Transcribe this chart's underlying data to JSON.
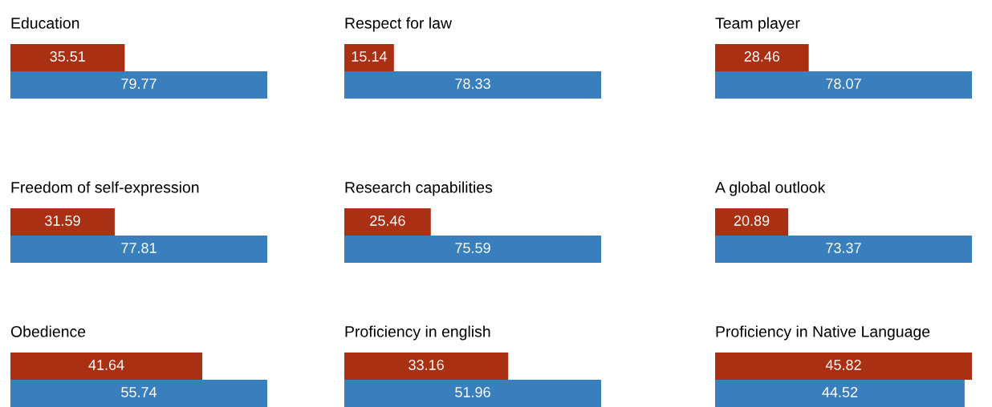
{
  "chart_data": [
    {
      "type": "bar",
      "orientation": "horizontal",
      "title": "Education",
      "categories": [
        null
      ],
      "series": [
        {
          "color": "#a93012",
          "values": [
            35.51
          ]
        },
        {
          "color": "#3a7fbd",
          "values": [
            79.77
          ]
        }
      ],
      "data_labels": true,
      "tick_labels": false
    },
    {
      "type": "bar",
      "orientation": "horizontal",
      "title": "Respect for law",
      "categories": [
        null
      ],
      "series": [
        {
          "color": "#a93012",
          "values": [
            15.14
          ]
        },
        {
          "color": "#3a7fbd",
          "values": [
            78.33
          ]
        }
      ],
      "data_labels": true,
      "tick_labels": false
    },
    {
      "type": "bar",
      "orientation": "horizontal",
      "title": "Team player",
      "categories": [
        null
      ],
      "series": [
        {
          "color": "#a93012",
          "values": [
            28.46
          ]
        },
        {
          "color": "#3a7fbd",
          "values": [
            78.07
          ]
        }
      ],
      "data_labels": true,
      "tick_labels": false
    },
    {
      "type": "bar",
      "orientation": "horizontal",
      "title": "Freedom of self-expression",
      "categories": [
        null
      ],
      "series": [
        {
          "color": "#a93012",
          "values": [
            31.59
          ]
        },
        {
          "color": "#3a7fbd",
          "values": [
            77.81
          ]
        }
      ],
      "data_labels": true,
      "tick_labels": false
    },
    {
      "type": "bar",
      "orientation": "horizontal",
      "title": "Research capabilities",
      "categories": [
        null
      ],
      "series": [
        {
          "color": "#a93012",
          "values": [
            25.46
          ]
        },
        {
          "color": "#3a7fbd",
          "values": [
            75.59
          ]
        }
      ],
      "data_labels": true,
      "tick_labels": false
    },
    {
      "type": "bar",
      "orientation": "horizontal",
      "title": "A global outlook",
      "categories": [
        null
      ],
      "series": [
        {
          "color": "#a93012",
          "values": [
            20.89
          ]
        },
        {
          "color": "#3a7fbd",
          "values": [
            73.37
          ]
        }
      ],
      "data_labels": true,
      "tick_labels": false
    },
    {
      "type": "bar",
      "orientation": "horizontal",
      "title": "Obedience",
      "categories": [
        null
      ],
      "series": [
        {
          "color": "#a93012",
          "values": [
            41.64
          ]
        },
        {
          "color": "#3a7fbd",
          "values": [
            55.74
          ]
        }
      ],
      "data_labels": true,
      "tick_labels": false
    },
    {
      "type": "bar",
      "orientation": "horizontal",
      "title": "Proficiency in english",
      "categories": [
        null
      ],
      "series": [
        {
          "color": "#a93012",
          "values": [
            33.16
          ]
        },
        {
          "color": "#3a7fbd",
          "values": [
            51.96
          ]
        }
      ],
      "data_labels": true,
      "tick_labels": false
    },
    {
      "type": "bar",
      "orientation": "horizontal",
      "title": "Proficiency in Native Language",
      "categories": [
        null
      ],
      "series": [
        {
          "color": "#a93012",
          "values": [
            45.82
          ]
        },
        {
          "color": "#3a7fbd",
          "values": [
            44.52
          ]
        }
      ],
      "data_labels": true,
      "tick_labels": false
    }
  ]
}
